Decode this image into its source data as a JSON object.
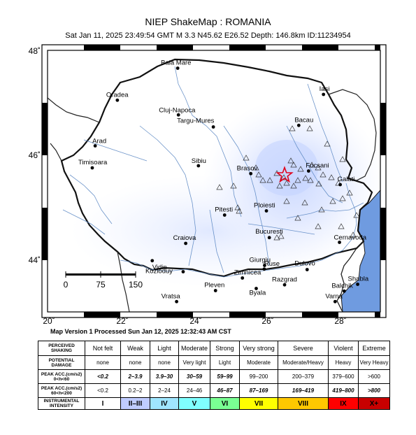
{
  "header": {
    "title": "NIEP ShakeMap : ROMANIA",
    "subtitle": "Sat Jan 11, 2025 23:49:54 GMT   M 3.3   N45.62 E26.52   Depth: 146.8km   ID:11234954"
  },
  "map": {
    "lon_range": [
      20,
      29.2
    ],
    "lat_range": [
      43,
      48
    ],
    "lat_ticks": [
      "48˚",
      "46˚",
      "44˚"
    ],
    "lon_ticks": [
      "20˚",
      "22˚",
      "24˚",
      "26˚",
      "28˚"
    ],
    "epicenter": {
      "lon": 26.52,
      "lat": 45.62
    },
    "cities": [
      {
        "name": "Baia Mare",
        "lon": 23.58,
        "lat": 47.66
      },
      {
        "name": "Oradea",
        "lon": 21.92,
        "lat": 47.05
      },
      {
        "name": "Cluj-Napoca",
        "lon": 23.6,
        "lat": 46.77
      },
      {
        "name": "Targu-Mures",
        "lon": 24.56,
        "lat": 46.54
      },
      {
        "name": "Iasi",
        "lon": 27.59,
        "lat": 47.16
      },
      {
        "name": "Bacau",
        "lon": 26.91,
        "lat": 46.57
      },
      {
        "name": "Arad",
        "lon": 21.31,
        "lat": 46.18
      },
      {
        "name": "Timisoara",
        "lon": 21.23,
        "lat": 45.76
      },
      {
        "name": "Sibiu",
        "lon": 24.15,
        "lat": 45.8
      },
      {
        "name": "Brasov",
        "lon": 25.59,
        "lat": 45.65
      },
      {
        "name": "Focsani",
        "lon": 27.18,
        "lat": 45.7
      },
      {
        "name": "Galati",
        "lon": 28.05,
        "lat": 45.44
      },
      {
        "name": "Ploiesti",
        "lon": 26.02,
        "lat": 44.94
      },
      {
        "name": "Pitesti",
        "lon": 24.87,
        "lat": 44.86
      },
      {
        "name": "Bucuresti",
        "lon": 26.1,
        "lat": 44.43
      },
      {
        "name": "Craiova",
        "lon": 23.8,
        "lat": 44.32
      },
      {
        "name": "Cernavoda",
        "lon": 28.03,
        "lat": 44.34
      },
      {
        "name": "Giurgiu",
        "lon": 25.97,
        "lat": 43.9
      },
      {
        "name": "Zimnicea",
        "lon": 25.36,
        "lat": 43.66
      },
      {
        "name": "Kozloduy",
        "lon": 23.73,
        "lat": 43.78
      },
      {
        "name": "Vidin",
        "lon": 22.88,
        "lat": 43.99
      },
      {
        "name": "Ruse",
        "lon": 25.96,
        "lat": 43.83
      },
      {
        "name": "Dulovo",
        "lon": 27.14,
        "lat": 43.82
      },
      {
        "name": "Pleven",
        "lon": 24.62,
        "lat": 43.42
      },
      {
        "name": "Byala",
        "lon": 25.74,
        "lat": 43.46
      },
      {
        "name": "Razgrad",
        "lon": 26.52,
        "lat": 43.53
      },
      {
        "name": "Shabla",
        "lon": 28.53,
        "lat": 43.54
      },
      {
        "name": "Balchik",
        "lon": 28.16,
        "lat": 43.41
      },
      {
        "name": "Varna",
        "lon": 27.91,
        "lat": 43.21
      },
      {
        "name": "Vratsa",
        "lon": 23.55,
        "lat": 43.21
      }
    ],
    "scalebar": {
      "labels": [
        "0",
        "75",
        "150"
      ]
    }
  },
  "footer": {
    "processed": "Map Version 1 Processed Sun Jan 12, 2025 12:32:43 AM CST"
  },
  "legend": {
    "headers": [
      "PERCEIVED SHAKING",
      "POTENTIAL DAMAGE",
      "PEAK ACC.(cm/s2) 0<h<60",
      "PEAK ACC.(cm/s2) 60<h<200",
      "INSTRUMENTAL INTENSITY"
    ],
    "shaking": [
      "Not felt",
      "Weak",
      "Light",
      "Moderate",
      "Strong",
      "Very strong",
      "Severe",
      "Violent",
      "Extreme"
    ],
    "damage": [
      "none",
      "none",
      "none",
      "Very light",
      "Light",
      "Moderate",
      "Moderate/Heavy",
      "Heavy",
      "Very Heavy"
    ],
    "acc_shallow": [
      "<0.2",
      "2–3.9",
      "3.9–30",
      "30–59",
      "59–99",
      "99–200",
      "200–379",
      "379–600",
      ">600"
    ],
    "acc_deep": [
      "<0.2",
      "0.2–2",
      "2–24",
      "24–46",
      "46–87",
      "87–169",
      "169–419",
      "419–800",
      ">800"
    ],
    "intensity": [
      "I",
      "II–III",
      "IV",
      "V",
      "VI",
      "VII",
      "VIII",
      "IX",
      "X+"
    ],
    "colors": [
      "#ffffff",
      "#bfccff",
      "#a0e6ff",
      "#80ffff",
      "#7aff93",
      "#ffff00",
      "#ffc800",
      "#ff9100",
      "#ff0000",
      "#c80000"
    ]
  }
}
